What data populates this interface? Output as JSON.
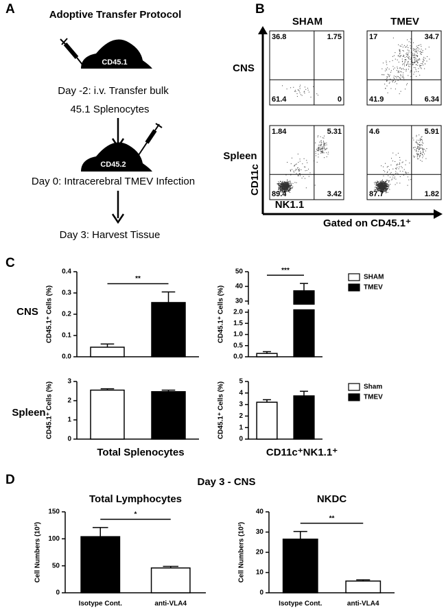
{
  "panel_a": {
    "letter": "A",
    "title": "Adoptive Transfer Protocol",
    "mouse1": "CD45.1",
    "step1_line1": "Day -2:  i.v. Transfer bulk",
    "step1_line2": "45.1 Splenocytes",
    "mouse2": "CD45.2",
    "step2": "Day 0:  Intracerebral TMEV Infection",
    "step3": "Day 3:  Harvest Tissue"
  },
  "panel_b": {
    "letter": "B",
    "columns": [
      "SHAM",
      "TMEV"
    ],
    "rows": [
      "CNS",
      "Spleen"
    ],
    "y_label": "CD11c",
    "x_label": "NK1.1",
    "gate_note": "Gated on CD45.1⁺",
    "plots": [
      [
        36.8,
        1.75,
        61.4,
        0
      ],
      [
        17,
        34.7,
        41.9,
        6.34
      ],
      [
        1.84,
        5.31,
        89.4,
        3.42
      ],
      [
        4.6,
        5.91,
        87.7,
        1.82
      ]
    ]
  },
  "panel_c": {
    "letter": "C",
    "rows": [
      "CNS",
      "Spleen"
    ],
    "columns": [
      "Total Splenocytes",
      "CD11c⁺NK1.1⁺"
    ]
  },
  "panel_d": {
    "letter": "D",
    "title": "Day 3 - CNS"
  },
  "chart_data": [
    {
      "type": "bar",
      "ylabel": "CD45.1⁺ Cells (%)",
      "ylim": [
        0,
        0.4
      ],
      "yticks": [
        {
          "value": 0,
          "label": "0.0"
        },
        0.1,
        0.2,
        0.3,
        0.4
      ],
      "significance": "**",
      "series": [
        {
          "name": "SHAM",
          "color": "#ffffff",
          "values": [
            0.045
          ],
          "errors": [
            0.015
          ]
        },
        {
          "name": "TMEV",
          "color": "#000000",
          "values": [
            0.255
          ],
          "errors": [
            0.05
          ]
        }
      ]
    },
    {
      "type": "bar",
      "ylabel": "CD45.1⁺ Cells (%)",
      "ylim": [
        0,
        50
      ],
      "ybreak": [
        2.1,
        28
      ],
      "yticks": [
        {
          "value": 0,
          "label": "0.0"
        },
        0.5,
        {
          "value": 1,
          "label": "1.0"
        },
        1.5,
        {
          "value": 2,
          "label": "2.0"
        },
        30,
        40,
        50
      ],
      "significance": "***",
      "legend": "right",
      "series": [
        {
          "name": "SHAM",
          "color": "#ffffff",
          "values": [
            0.15
          ],
          "errors": [
            0.08
          ]
        },
        {
          "name": "TMEV",
          "color": "#000000",
          "values": [
            37
          ],
          "errors": [
            5
          ]
        }
      ]
    },
    {
      "type": "bar",
      "ylabel": "CD45.1⁺ Cells (%)",
      "ylim": [
        0,
        3
      ],
      "yticks": [
        0,
        1,
        2,
        3
      ],
      "series": [
        {
          "name": "Sham",
          "color": "#ffffff",
          "values": [
            2.55
          ],
          "errors": [
            0.07
          ]
        },
        {
          "name": "TMEV",
          "color": "#000000",
          "values": [
            2.47
          ],
          "errors": [
            0.08
          ]
        }
      ]
    },
    {
      "type": "bar",
      "ylabel": "CD45.1⁺ Cells (%)",
      "ylim": [
        0,
        5
      ],
      "yticks": [
        0,
        1,
        2,
        3,
        4,
        5
      ],
      "legend": "right",
      "series": [
        {
          "name": "Sham",
          "color": "#ffffff",
          "values": [
            3.2
          ],
          "errors": [
            0.22
          ]
        },
        {
          "name": "TMEV",
          "color": "#000000",
          "values": [
            3.75
          ],
          "errors": [
            0.4
          ]
        }
      ]
    },
    {
      "type": "bar",
      "title": "Total Lymphocytes",
      "ylabel": "Cell Numbers (10³)",
      "ylim": [
        0,
        150
      ],
      "yticks": [
        0,
        50,
        100,
        150
      ],
      "significance": "*",
      "categories": [
        "Isotype Cont.",
        "anti-VLA4"
      ],
      "values": [
        104,
        46
      ],
      "errors": [
        17,
        3
      ],
      "colors": [
        "#000000",
        "#ffffff"
      ]
    },
    {
      "type": "bar",
      "title": "NKDC",
      "ylabel": "Cell Numbers (10³)",
      "ylim": [
        0,
        40
      ],
      "yticks": [
        0,
        10,
        20,
        30,
        40
      ],
      "significance": "**",
      "categories": [
        "Isotype Cont.",
        "anti-VLA4"
      ],
      "values": [
        26.5,
        5.8
      ],
      "errors": [
        3.8,
        0.6
      ],
      "colors": [
        "#000000",
        "#ffffff"
      ]
    }
  ]
}
